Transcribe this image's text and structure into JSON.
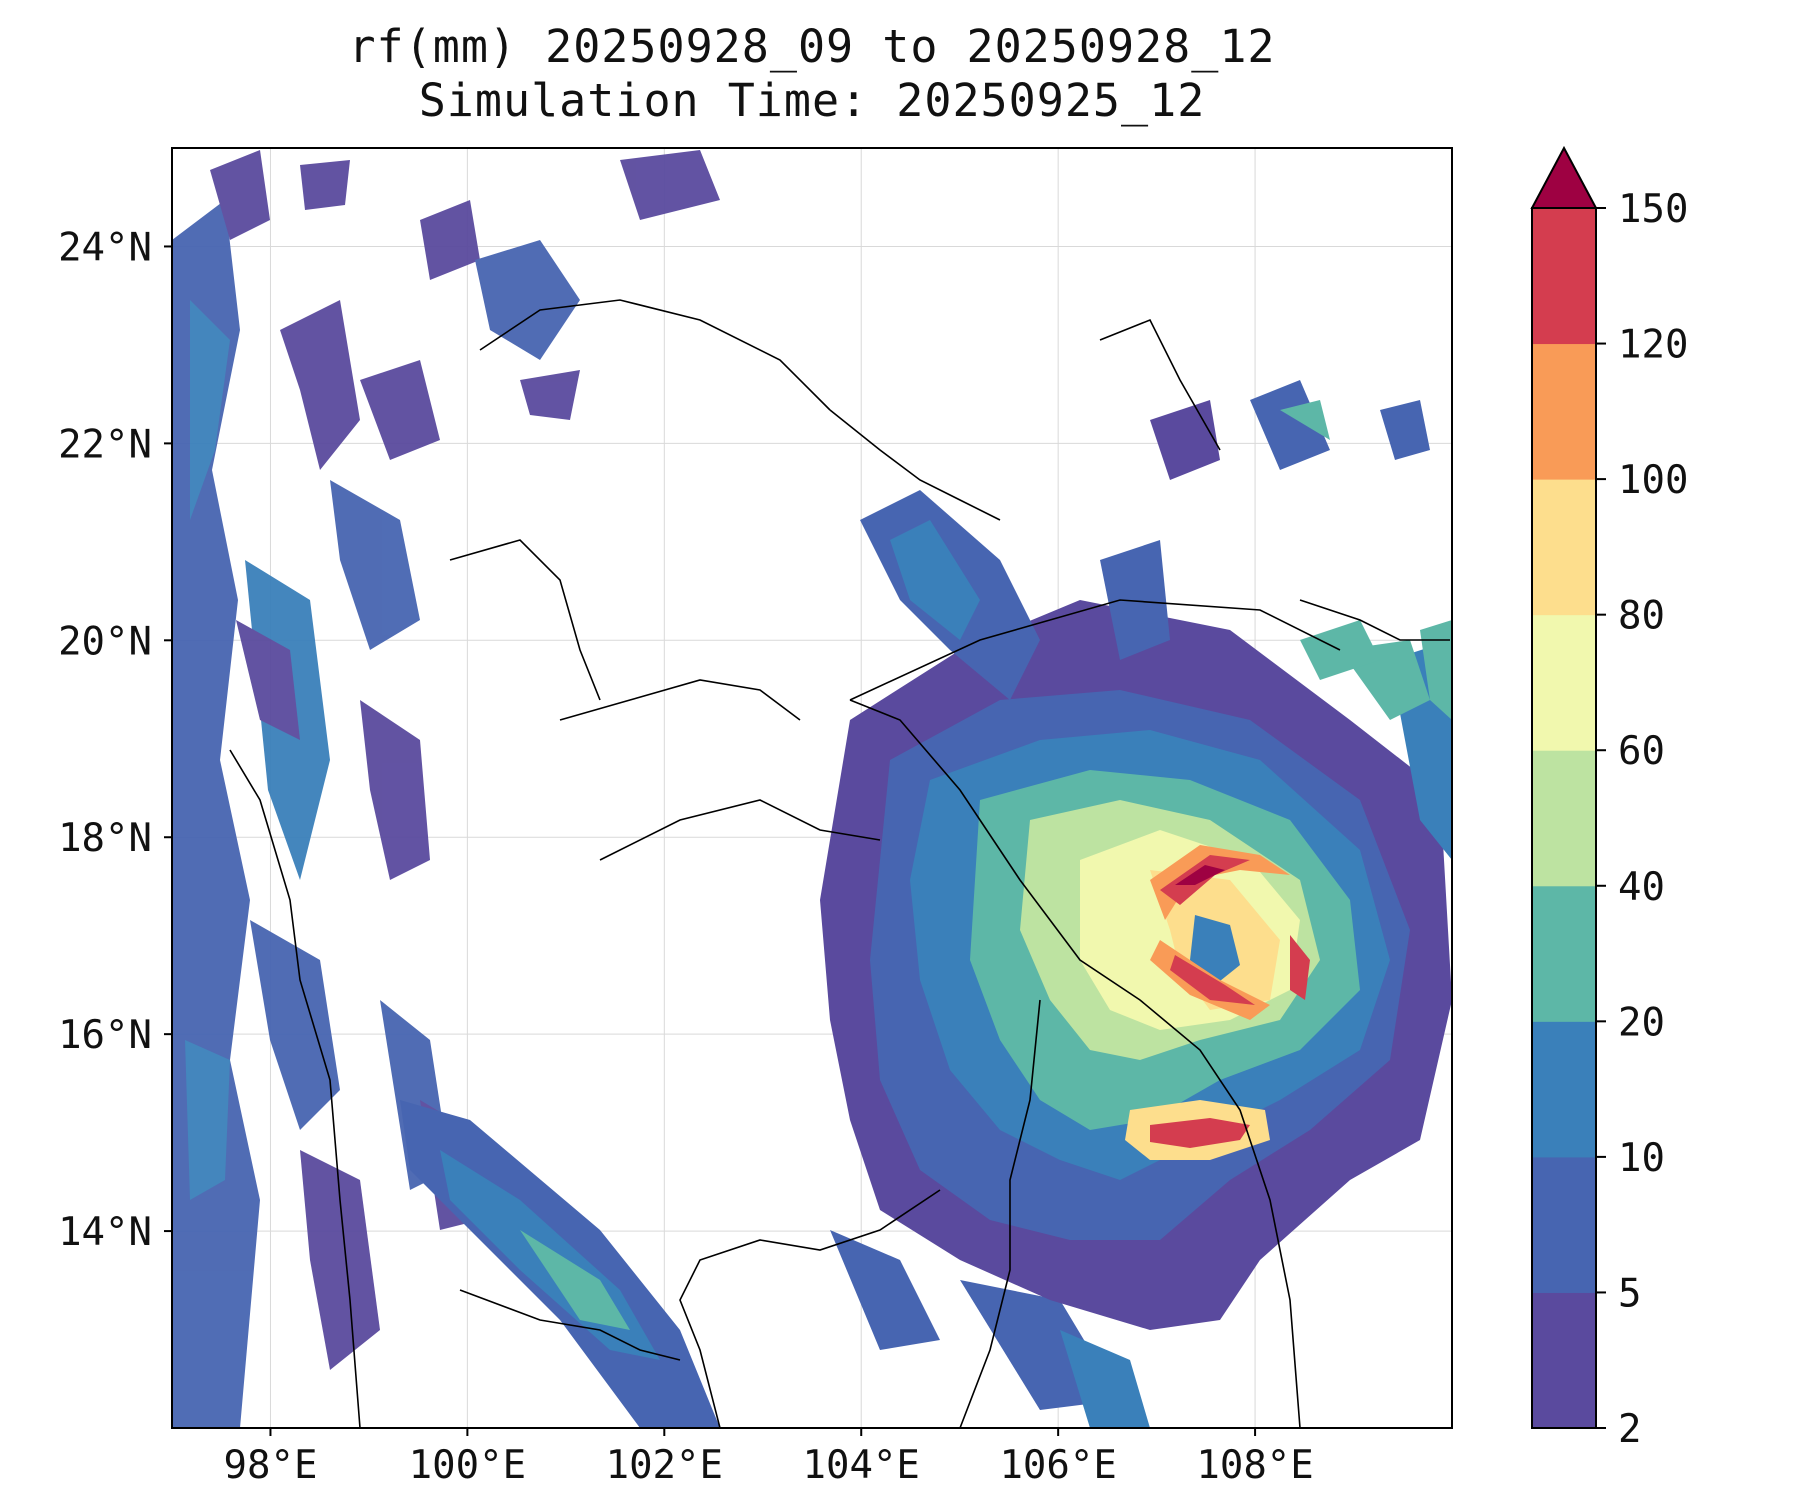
{
  "title": {
    "line1": "rf(mm) 20250928_09 to 20250928_12",
    "line2": "Simulation Time: 20250925_12"
  },
  "map": {
    "lon_range": [
      97.0,
      110.0
    ],
    "lat_range": [
      12.0,
      25.0
    ],
    "lon_ticks": [
      {
        "value": 98,
        "label": "98°E"
      },
      {
        "value": 100,
        "label": "100°E"
      },
      {
        "value": 102,
        "label": "102°E"
      },
      {
        "value": 104,
        "label": "104°E"
      },
      {
        "value": 106,
        "label": "106°E"
      },
      {
        "value": 108,
        "label": "108°E"
      }
    ],
    "lat_ticks": [
      {
        "value": 14,
        "label": "14°N"
      },
      {
        "value": 16,
        "label": "16°N"
      },
      {
        "value": 18,
        "label": "18°N"
      },
      {
        "value": 20,
        "label": "20°N"
      },
      {
        "value": 22,
        "label": "22°N"
      },
      {
        "value": 24,
        "label": "24°N"
      }
    ],
    "gridlines": true
  },
  "colorbar": {
    "levels": [
      {
        "label": "2",
        "color": "#5a4a9e"
      },
      {
        "label": "5",
        "color": "#4765b1"
      },
      {
        "label": "10",
        "color": "#3a80ba"
      },
      {
        "label": "20",
        "color": "#5db7a7"
      },
      {
        "label": "40",
        "color": "#bde3a1"
      },
      {
        "label": "60",
        "color": "#f1f8ae"
      },
      {
        "label": "80",
        "color": "#fdde8d"
      },
      {
        "label": "100",
        "color": "#f99b57"
      },
      {
        "label": "120",
        "color": "#d43d4f"
      },
      {
        "label": "150",
        "color": ""
      }
    ],
    "extend_color": "#9e0142"
  }
}
